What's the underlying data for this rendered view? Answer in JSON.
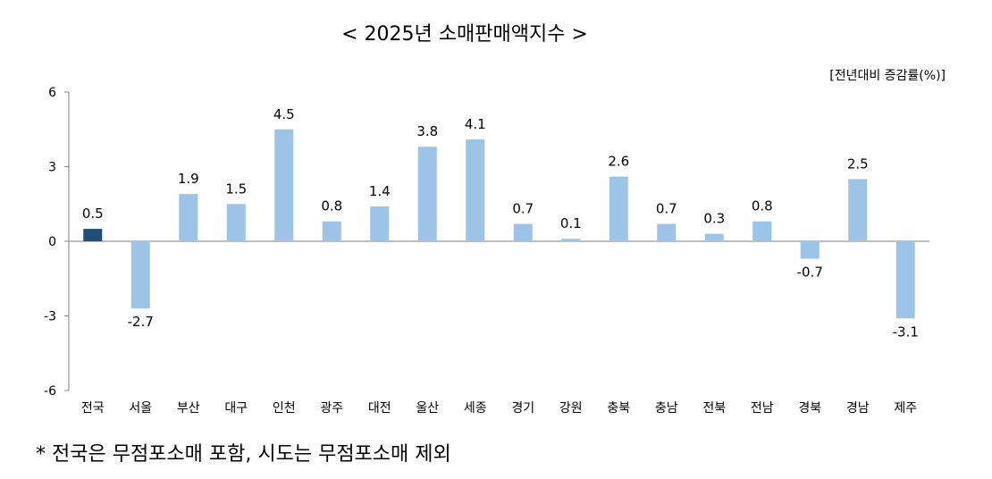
{
  "title": "< 2025년  소매판매액지수 >",
  "unit_note": "[전년대비 증감률(%)]",
  "footnote": "* 전국은 무점포소매 포함, 시도는 무점포소매 제외",
  "chart_data": {
    "type": "bar",
    "title": "< 2025년  소매판매액지수 >",
    "ylabel": "전년대비 증감률(%)",
    "categories": [
      "전국",
      "서울",
      "부산",
      "대구",
      "인천",
      "광주",
      "대전",
      "울산",
      "세종",
      "경기",
      "강원",
      "충북",
      "충남",
      "전북",
      "전남",
      "경북",
      "경남",
      "제주"
    ],
    "values": [
      0.5,
      -2.7,
      1.9,
      1.5,
      4.5,
      0.8,
      1.4,
      3.8,
      4.1,
      0.7,
      0.1,
      2.6,
      0.7,
      0.3,
      0.8,
      -0.7,
      2.5,
      -3.1
    ],
    "value_labels": [
      "0.5",
      "-2.7",
      "1.9",
      "1.5",
      "4.5",
      "0.8",
      "1.4",
      "3.8",
      "4.1",
      "0.7",
      "0.1",
      "2.6",
      "0.7",
      "0.3",
      "0.8",
      "-0.7",
      "2.5",
      "-3.1"
    ],
    "ylim": [
      -6,
      6
    ],
    "yticks": [
      6,
      3,
      0,
      -3,
      -6
    ],
    "grid": false,
    "colors": {
      "highlight": "#1f4e79",
      "bar": "#9dc3e6",
      "axis": "#808080"
    }
  }
}
